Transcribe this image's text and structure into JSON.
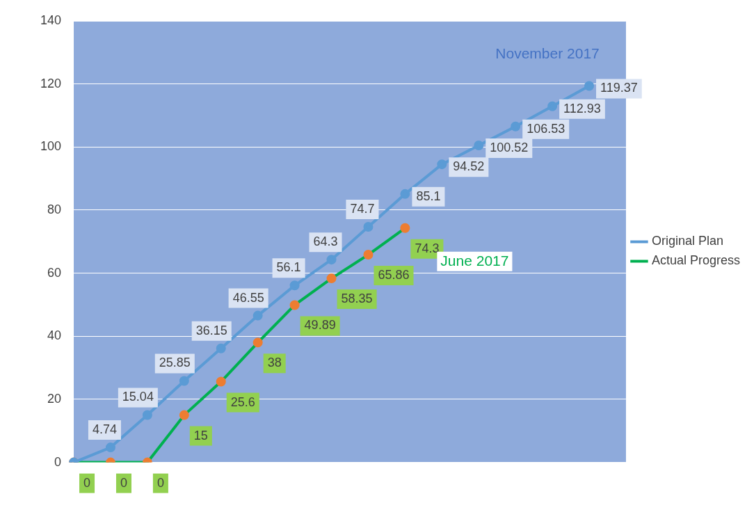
{
  "chart_data": {
    "type": "line",
    "categories": [
      null,
      null,
      null,
      null,
      null,
      null,
      null,
      null,
      null,
      null,
      null,
      null,
      null,
      null,
      null,
      null
    ],
    "series": [
      {
        "name": "Original Plan",
        "color": "#5b9bd5",
        "values": [
          0,
          4.74,
          15.04,
          25.85,
          36.15,
          46.55,
          56.1,
          64.3,
          74.7,
          85.1,
          94.52,
          100.52,
          106.53,
          112.93,
          119.37,
          null
        ],
        "value_labels": [
          null,
          "4.74",
          "15.04",
          "25.85",
          "36.15",
          "46.55",
          "56.1",
          "64.3",
          "74.7",
          "85.1",
          "94.52",
          "100.52",
          "106.53",
          "112.93",
          "119.37",
          null
        ]
      },
      {
        "name": "Actual Progress",
        "color": "#00b050",
        "values": [
          0,
          0,
          0,
          15,
          25.6,
          38,
          49.89,
          58.35,
          65.86,
          74.3,
          null,
          null,
          null,
          null,
          null,
          null
        ],
        "value_labels": [
          "0",
          "0",
          "0",
          "15",
          "25.6",
          "38",
          "49.89",
          "58.35",
          "65.86",
          "74.3",
          null,
          null,
          null,
          null,
          null,
          null
        ]
      }
    ],
    "annotations": [
      "November 2017",
      "June 2017"
    ],
    "ylim": [
      0,
      140
    ],
    "yticks": [
      0,
      20,
      40,
      60,
      80,
      100,
      120,
      140
    ],
    "grid": "y",
    "legend": "right",
    "marker": "circle",
    "line_style": "solid"
  }
}
